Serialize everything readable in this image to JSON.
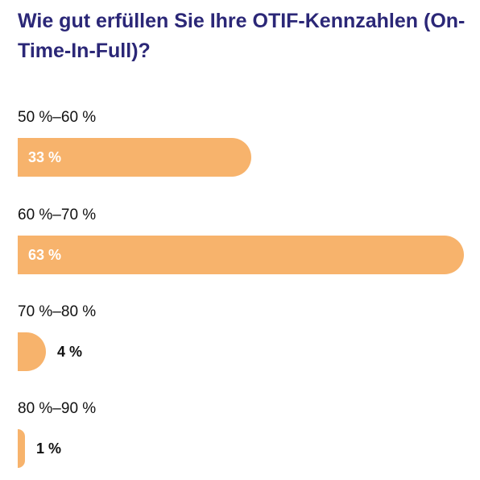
{
  "chart_data": {
    "type": "bar",
    "orientation": "horizontal",
    "title": "Wie gut erfüllen Sie Ihre OTIF-Kennzahlen (On-Time-In-Full)?",
    "categories": [
      "50 %–60 %",
      "60 %–70 %",
      "70 %–80 %",
      "80 %–90 %"
    ],
    "values": [
      33,
      63,
      4,
      1
    ],
    "value_labels": [
      "33 %",
      "63 %",
      "4 %",
      "1 %"
    ],
    "unit": "%",
    "xlim": [
      0,
      63
    ],
    "grid": false,
    "legend": "none",
    "colors": {
      "bar": "#f7b36c",
      "title": "#2b2777",
      "label": "#111111",
      "value_inside": "#ffffff"
    }
  }
}
